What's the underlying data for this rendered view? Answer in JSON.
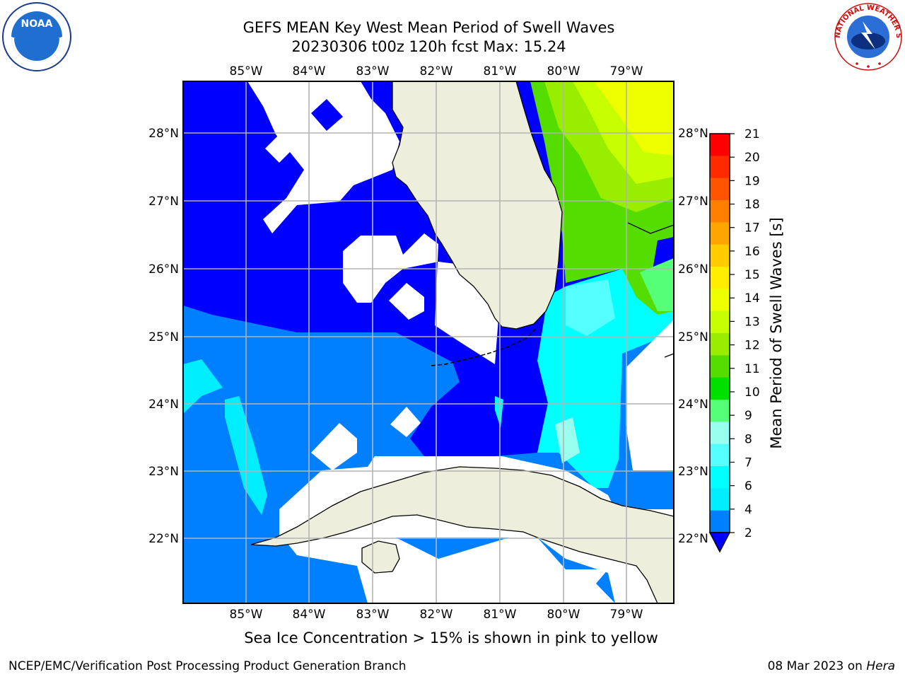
{
  "title_line1": "GEFS MEAN Key West Mean Period of Swell Waves",
  "title_line2": "20230306 t00z 120h fcst   Max: 15.24",
  "caption": "Sea Ice Concentration > 15% is shown in pink to yellow",
  "footer_left": "NCEP/EMC/Verification Post Processing Product Generation Branch",
  "footer_date": "08 Mar 2023 on ",
  "footer_system": "Hera",
  "map": {
    "lon_ticks": [
      "85°W",
      "84°W",
      "83°W",
      "82°W",
      "81°W",
      "80°W",
      "79°W"
    ],
    "lat_ticks": [
      "28°N",
      "27°N",
      "26°N",
      "25°N",
      "24°N",
      "23°N",
      "22°N"
    ]
  },
  "colorbar": {
    "label": "Mean Period of Swell Waves [s]",
    "ticks": [
      "21",
      "20",
      "19",
      "18",
      "17",
      "16",
      "15",
      "14",
      "13",
      "12",
      "11",
      "10",
      "9",
      "8",
      "7",
      "6",
      "4",
      "2"
    ],
    "colors": [
      "#ff0000",
      "#ff2a00",
      "#ff5500",
      "#ff7f00",
      "#ffa500",
      "#ffcc00",
      "#ffee00",
      "#eeff00",
      "#c8ff00",
      "#99ee00",
      "#55dd00",
      "#00e000",
      "#55ff77",
      "#99ffee",
      "#55ffff",
      "#00ffff",
      "#00eeff",
      "#0080ff"
    ],
    "extend_color": "#0000ff"
  },
  "logos": {
    "noaa": "NOAA",
    "nws": "NATIONAL WEATHER SERVICE"
  }
}
